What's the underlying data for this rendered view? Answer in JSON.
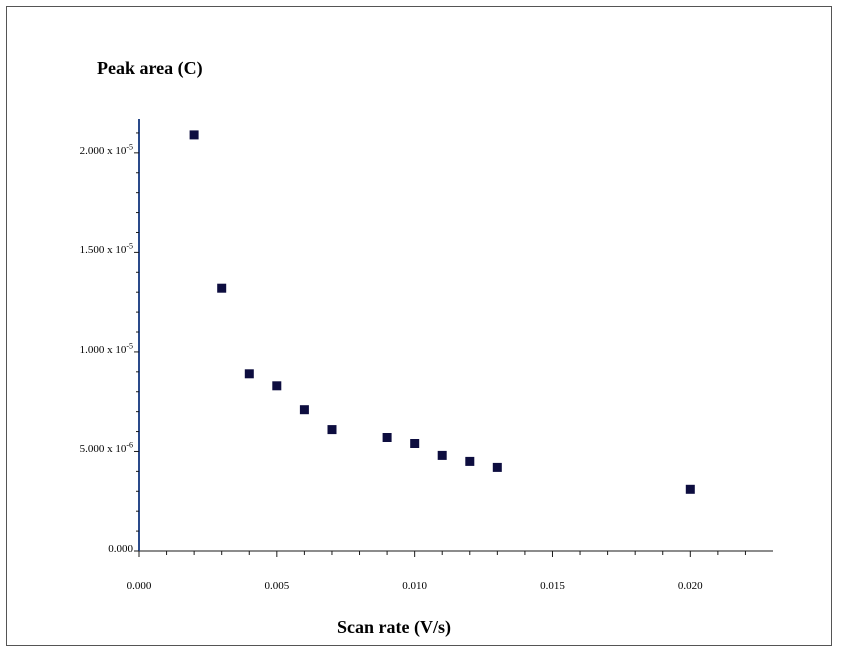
{
  "chart_data": {
    "type": "scatter",
    "title": "Peak area (C)",
    "xlabel": "Scan rate (V/s)",
    "ylabel": "",
    "xlim": [
      0,
      0.023
    ],
    "ylim": [
      0,
      2.17e-05
    ],
    "x_ticks": [
      {
        "value": 0.0,
        "label": "0.000"
      },
      {
        "value": 0.005,
        "label": "0.005"
      },
      {
        "value": 0.01,
        "label": "0.010"
      },
      {
        "value": 0.015,
        "label": "0.015"
      },
      {
        "value": 0.02,
        "label": "0.020"
      }
    ],
    "y_ticks": [
      {
        "value": 0,
        "mantissa": "0.000",
        "exponent": ""
      },
      {
        "value": 5e-06,
        "mantissa": "5.000 x 10",
        "exponent": "-6"
      },
      {
        "value": 1e-05,
        "mantissa": "1.000 x 10",
        "exponent": "-5"
      },
      {
        "value": 1.5e-05,
        "mantissa": "1.500 x 10",
        "exponent": "-5"
      },
      {
        "value": 2e-05,
        "mantissa": "2.000 x 10",
        "exponent": "-5"
      }
    ],
    "series": [
      {
        "points": [
          {
            "x": 0.002,
            "y": 2.09e-05
          },
          {
            "x": 0.003,
            "y": 1.32e-05
          },
          {
            "x": 0.004,
            "y": 8.9e-06
          },
          {
            "x": 0.005,
            "y": 8.3e-06
          },
          {
            "x": 0.006,
            "y": 7.1e-06
          },
          {
            "x": 0.007,
            "y": 6.1e-06
          },
          {
            "x": 0.009,
            "y": 5.7e-06
          },
          {
            "x": 0.01,
            "y": 5.4e-06
          },
          {
            "x": 0.011,
            "y": 4.8e-06
          },
          {
            "x": 0.012,
            "y": 4.5e-06
          },
          {
            "x": 0.013,
            "y": 4.2e-06
          },
          {
            "x": 0.02,
            "y": 3.1e-06
          }
        ]
      }
    ],
    "grid": false,
    "marker": "square",
    "colors": {
      "marker": "#0d0d3f",
      "axis": "#1a1a1a",
      "y_axis": "#2a4a8a"
    }
  }
}
